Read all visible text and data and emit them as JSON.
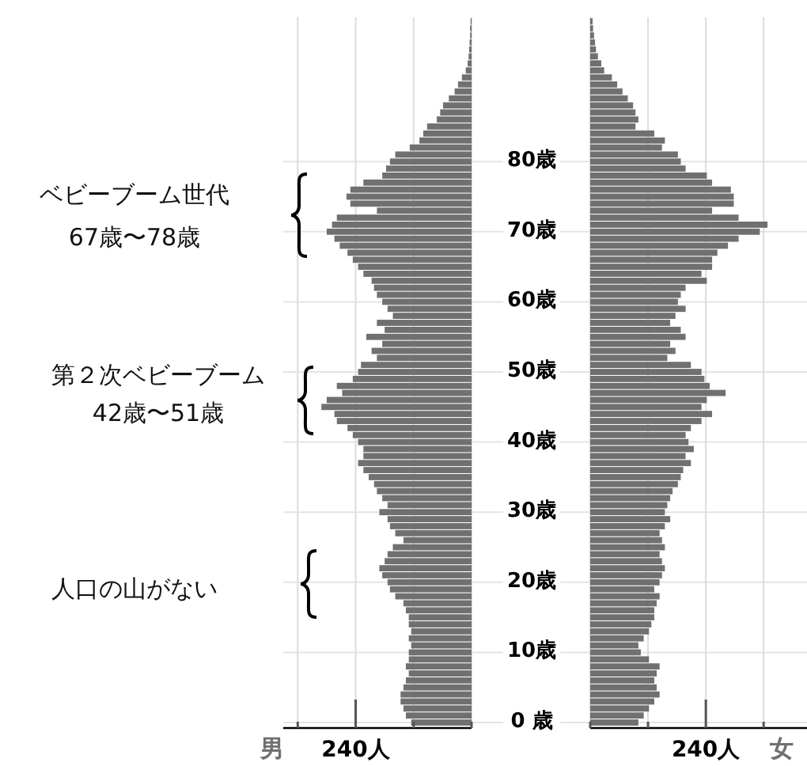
{
  "chart_data": [
    {
      "type": "bar",
      "orientation": "horizontal",
      "categories": [
        null,
        null,
        null,
        null,
        null,
        null,
        null,
        null,
        null,
        null,
        null,
        null,
        null,
        null,
        null,
        null,
        null,
        null,
        null,
        null,
        "80歳",
        null,
        null,
        null,
        null,
        null,
        null,
        null,
        null,
        null,
        "70歳",
        null,
        null,
        null,
        null,
        null,
        null,
        null,
        null,
        null,
        "60歳",
        null,
        null,
        null,
        null,
        null,
        null,
        null,
        null,
        null,
        "50歳",
        null,
        null,
        null,
        null,
        null,
        null,
        null,
        null,
        null,
        "40歳",
        null,
        null,
        null,
        null,
        null,
        null,
        null,
        null,
        null,
        "30歳",
        null,
        null,
        null,
        null,
        null,
        null,
        null,
        null,
        null,
        "20歳",
        null,
        null,
        null,
        null,
        null,
        null,
        null,
        null,
        null,
        "10歳",
        null,
        null,
        null,
        null,
        null,
        null,
        null,
        null,
        null,
        "0 歳"
      ],
      "series": [
        {
          "name": "男",
          "color": "#707070",
          "values": [
            2,
            3,
            3,
            4,
            5,
            6,
            8,
            12,
            20,
            28,
            35,
            47,
            59,
            65,
            72,
            92,
            100,
            108,
            128,
            158,
            169,
            177,
            185,
            224,
            251,
            259,
            251,
            196,
            279,
            289,
            300,
            284,
            273,
            257,
            246,
            235,
            224,
            207,
            202,
            196,
            185,
            174,
            163,
            196,
            180,
            218,
            185,
            207,
            196,
            229,
            235,
            246,
            279,
            268,
            300,
            311,
            284,
            279,
            257,
            246,
            235,
            224,
            224,
            235,
            224,
            213,
            202,
            196,
            185,
            174,
            191,
            174,
            169,
            158,
            141,
            163,
            174,
            180,
            191,
            185,
            174,
            169,
            158,
            141,
            136,
            130,
            130,
            125,
            130,
            125,
            130,
            130,
            136,
            130,
            136,
            141,
            147,
            147,
            141,
            136,
            125
          ]
        }
      ],
      "xlim": [
        390,
        0
      ],
      "xticks": [
        {
          "value": 0,
          "label": null
        },
        {
          "value": 120,
          "label": null
        },
        {
          "value": 240,
          "label": "240人"
        },
        {
          "value": 360,
          "label": null
        }
      ],
      "grid": true,
      "annotations": [
        "ベビーブーム世代\n67歳〜78歳",
        "第２次ベビーブーム\n42歳〜51歳",
        "人口の山がない"
      ]
    },
    {
      "type": "bar",
      "orientation": "horizontal",
      "categories": [
        null,
        null,
        null,
        null,
        null,
        null,
        null,
        null,
        null,
        null,
        null,
        null,
        null,
        null,
        null,
        null,
        null,
        null,
        null,
        null,
        null,
        null,
        null,
        null,
        null,
        null,
        null,
        null,
        null,
        null,
        null,
        null,
        null,
        null,
        null,
        null,
        null,
        null,
        null,
        null,
        null,
        null,
        null,
        null,
        null,
        null,
        null,
        null,
        null,
        null,
        null,
        null,
        null,
        null,
        null,
        null,
        null,
        null,
        null,
        null,
        null,
        null,
        null,
        null,
        null,
        null,
        null,
        null,
        null,
        null,
        null,
        null,
        null,
        null,
        null,
        null,
        null,
        null,
        null,
        null,
        null,
        null,
        null,
        null,
        null,
        null,
        null,
        null,
        null,
        null,
        null,
        null,
        null,
        null,
        null,
        null,
        null,
        null,
        null,
        null,
        null
      ],
      "tick_labels": "x",
      "series": [
        {
          "name": "女",
          "color": "#707070",
          "values": [
            5,
            6,
            8,
            10,
            12,
            16,
            23,
            29,
            45,
            56,
            67,
            78,
            89,
            94,
            100,
            94,
            133,
            155,
            149,
            182,
            188,
            198,
            242,
            253,
            292,
            298,
            298,
            253,
            308,
            368,
            352,
            308,
            286,
            264,
            253,
            253,
            231,
            242,
            198,
            188,
            182,
            198,
            177,
            166,
            188,
            198,
            166,
            177,
            160,
            209,
            231,
            237,
            248,
            281,
            242,
            231,
            253,
            231,
            209,
            198,
            204,
            215,
            198,
            209,
            193,
            188,
            182,
            171,
            166,
            160,
            155,
            166,
            155,
            144,
            149,
            155,
            144,
            149,
            155,
            149,
            144,
            133,
            144,
            138,
            133,
            133,
            127,
            122,
            111,
            100,
            105,
            122,
            144,
            138,
            133,
            138,
            144,
            133,
            122,
            111,
            100
          ]
        }
      ],
      "xlim": [
        0,
        450
      ],
      "xticks": [
        {
          "value": 0,
          "label": null
        },
        {
          "value": 120,
          "label": null
        },
        {
          "value": 240,
          "label": "240人"
        },
        {
          "value": 360,
          "label": null
        }
      ],
      "grid": "x"
    }
  ]
}
